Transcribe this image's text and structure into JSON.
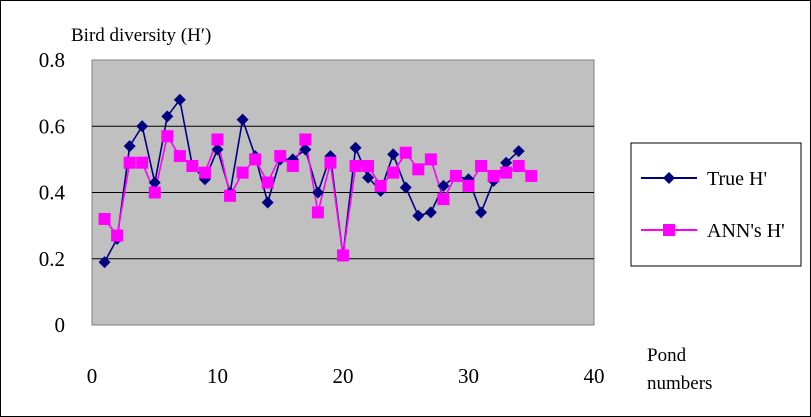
{
  "chart_data": {
    "type": "line",
    "ylabel": "Bird diversity (H′)",
    "xlabel_lines": [
      "Pond",
      "numbers"
    ],
    "xlim": [
      0,
      40
    ],
    "ylim": [
      0,
      0.8
    ],
    "x_ticks": [
      "0",
      "10",
      "20",
      "30",
      "40"
    ],
    "y_ticks": [
      "0",
      "0.2",
      "0.4",
      "0.6",
      "0.8"
    ],
    "grid": "horizontal",
    "legend_position": "right",
    "plot_background": "#C0C0C0",
    "series": [
      {
        "name": "True H'",
        "color": "#000080",
        "marker": "diamond",
        "x": [
          1,
          2,
          3,
          4,
          5,
          6,
          7,
          8,
          9,
          10,
          11,
          12,
          13,
          14,
          15,
          16,
          17,
          18,
          19,
          20,
          21,
          22,
          23,
          24,
          25,
          26,
          27,
          28,
          29,
          30,
          31,
          32,
          33,
          34
        ],
        "values": [
          0.19,
          0.26,
          0.54,
          0.6,
          0.43,
          0.63,
          0.68,
          0.48,
          0.44,
          0.53,
          0.4,
          0.62,
          0.51,
          0.37,
          0.5,
          0.5,
          0.53,
          0.4,
          0.51,
          0.21,
          0.535,
          0.445,
          0.405,
          0.515,
          0.415,
          0.33,
          0.34,
          0.42,
          0.45,
          0.44,
          0.34,
          0.435,
          0.49,
          0.525
        ]
      },
      {
        "name": "ANN's H'",
        "color": "#FF00FF",
        "marker": "square",
        "x": [
          1,
          2,
          3,
          4,
          5,
          6,
          7,
          8,
          9,
          10,
          11,
          12,
          13,
          14,
          15,
          16,
          17,
          18,
          19,
          20,
          21,
          22,
          23,
          24,
          25,
          26,
          27,
          28,
          29,
          30,
          31,
          32,
          33,
          34,
          35
        ],
        "values": [
          0.32,
          0.27,
          0.49,
          0.49,
          0.4,
          0.57,
          0.51,
          0.48,
          0.46,
          0.56,
          0.39,
          0.46,
          0.5,
          0.43,
          0.51,
          0.48,
          0.56,
          0.34,
          0.49,
          0.21,
          0.48,
          0.48,
          0.42,
          0.46,
          0.52,
          0.47,
          0.5,
          0.38,
          0.45,
          0.42,
          0.48,
          0.45,
          0.46,
          0.48,
          0.45
        ]
      }
    ]
  }
}
